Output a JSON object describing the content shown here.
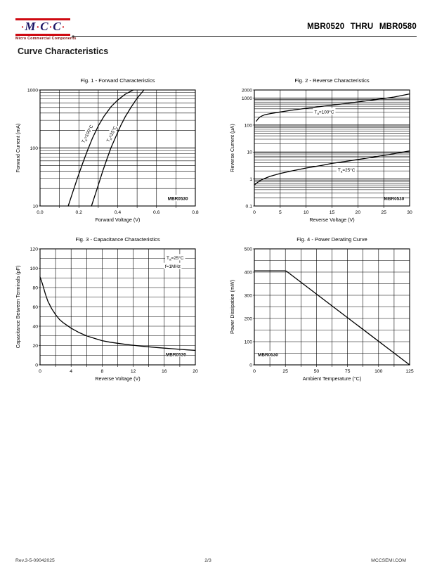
{
  "header": {
    "logo": {
      "dot": "·",
      "letters": [
        "M",
        "C",
        "C"
      ],
      "tagline": "Micro Commercial Components",
      "reg": "®",
      "bar_color": "#cf0a12",
      "letter_color": "#1b1464"
    },
    "part_range": "MBR0520 THRU MBR0580"
  },
  "section_title": "Curve Characteristics",
  "footer": {
    "revision": "Rev.3-5-09042025",
    "page_number": "2/3",
    "website": "MCCSEMI.COM"
  },
  "chart_data": [
    {
      "type": "line",
      "title": "Fig. 1 - Forward Characteristics",
      "xlabel": "Forward Voltage (V)",
      "ylabel": "Forward Current (mA)",
      "grid": true,
      "x": {
        "scale": "linear",
        "min": 0,
        "max": 0.8,
        "grid_step": 0.1,
        "ticks": [
          {
            "v": 0,
            "t": "0.0"
          },
          {
            "v": 0.2,
            "t": "0.2"
          },
          {
            "v": 0.4,
            "t": "0.4"
          },
          {
            "v": 0.6,
            "t": "0.6"
          },
          {
            "v": 0.8,
            "t": "0.8"
          }
        ]
      },
      "y": {
        "scale": "log",
        "min": 10,
        "max": 1000,
        "ticks": [
          {
            "v": 10,
            "t": "10"
          },
          {
            "v": 100,
            "t": "100"
          },
          {
            "v": 1000,
            "t": "1000"
          }
        ]
      },
      "series": [
        {
          "name": "Ta=100C",
          "points": [
            [
              0.145,
              10
            ],
            [
              0.17,
              18
            ],
            [
              0.195,
              32
            ],
            [
              0.22,
              55
            ],
            [
              0.245,
              92
            ],
            [
              0.27,
              148
            ],
            [
              0.3,
              240
            ],
            [
              0.33,
              355
            ],
            [
              0.365,
              510
            ],
            [
              0.4,
              670
            ],
            [
              0.44,
              850
            ],
            [
              0.48,
              1000
            ]
          ]
        },
        {
          "name": "Ta=25C",
          "points": [
            [
              0.265,
              10
            ],
            [
              0.285,
              16
            ],
            [
              0.305,
              26
            ],
            [
              0.325,
              42
            ],
            [
              0.345,
              65
            ],
            [
              0.365,
              100
            ],
            [
              0.39,
              155
            ],
            [
              0.415,
              240
            ],
            [
              0.44,
              350
            ],
            [
              0.47,
              510
            ],
            [
              0.5,
              720
            ],
            [
              0.535,
              1000
            ]
          ]
        }
      ],
      "annotations": [
        {
          "x": 0.243,
          "y": 175,
          "rotate": -63,
          "parts": [
            {
              "t": "T"
            },
            {
              "t": "a",
              "sub": true
            },
            {
              "t": "=100°C"
            }
          ]
        },
        {
          "x": 0.368,
          "y": 175,
          "rotate": -63,
          "parts": [
            {
              "t": "T"
            },
            {
              "t": "a",
              "sub": true
            },
            {
              "t": "=25°C"
            }
          ]
        },
        {
          "x": 0.71,
          "y": 13.5,
          "rotate": 0,
          "bold": true,
          "parts": [
            {
              "t": "MBR0530"
            }
          ]
        }
      ]
    },
    {
      "type": "line",
      "title": "Fig. 2 - Reverse Characteristics",
      "xlabel": "Reverse Voltage (V)",
      "ylabel": "Reverse Current (µA)",
      "grid": true,
      "x": {
        "scale": "linear",
        "min": 0,
        "max": 30,
        "grid_step": 5,
        "ticks": [
          {
            "v": 0,
            "t": "0"
          },
          {
            "v": 5,
            "t": "5"
          },
          {
            "v": 10,
            "t": "10"
          },
          {
            "v": 15,
            "t": "15"
          },
          {
            "v": 20,
            "t": "20"
          },
          {
            "v": 25,
            "t": "25"
          },
          {
            "v": 30,
            "t": "30"
          }
        ]
      },
      "y": {
        "scale": "log",
        "min": 0.1,
        "max": 2000,
        "ticks": [
          {
            "v": 0.1,
            "t": "0.1"
          },
          {
            "v": 1,
            "t": "1"
          },
          {
            "v": 10,
            "t": "10"
          },
          {
            "v": 100,
            "t": "100"
          },
          {
            "v": 1000,
            "t": "1000"
          },
          {
            "v": 2000,
            "t": "2000"
          }
        ]
      },
      "series": [
        {
          "name": "Ta=100C",
          "points": [
            [
              0.4,
              140
            ],
            [
              0.7,
              170
            ],
            [
              1,
              195
            ],
            [
              1.5,
              220
            ],
            [
              2,
              240
            ],
            [
              3,
              265
            ],
            [
              5,
              305
            ],
            [
              7,
              350
            ],
            [
              10,
              420
            ],
            [
              13,
              490
            ],
            [
              15,
              550
            ],
            [
              18,
              640
            ],
            [
              20,
              720
            ],
            [
              23,
              860
            ],
            [
              25,
              970
            ],
            [
              27,
              1100
            ],
            [
              30,
              1430
            ]
          ]
        },
        {
          "name": "Ta=25C",
          "points": [
            [
              0,
              0.6
            ],
            [
              0.5,
              0.72
            ],
            [
              1,
              0.84
            ],
            [
              1.5,
              0.95
            ],
            [
              2,
              1.05
            ],
            [
              3,
              1.25
            ],
            [
              5,
              1.6
            ],
            [
              7,
              1.95
            ],
            [
              10,
              2.55
            ],
            [
              13,
              3.2
            ],
            [
              15,
              3.8
            ],
            [
              18,
              4.6
            ],
            [
              20,
              5.3
            ],
            [
              23,
              6.5
            ],
            [
              25,
              7.5
            ],
            [
              27,
              8.7
            ],
            [
              30,
              11
            ]
          ]
        }
      ],
      "annotations": [
        {
          "x": 13.5,
          "y": 310,
          "rotate": 0,
          "parts": [
            {
              "t": "T"
            },
            {
              "t": "a",
              "sub": true
            },
            {
              "t": "=100°C"
            }
          ]
        },
        {
          "x": 17.8,
          "y": 2.2,
          "rotate": 0,
          "parts": [
            {
              "t": "T"
            },
            {
              "t": "a",
              "sub": true
            },
            {
              "t": "=25°C"
            }
          ]
        },
        {
          "x": 27,
          "y": 0.19,
          "rotate": 0,
          "bold": true,
          "parts": [
            {
              "t": "MBR0530"
            }
          ]
        }
      ]
    },
    {
      "type": "line",
      "title": "Fig. 3 - Capacitance Characteristics",
      "xlabel": "Reverse Voltage (V)",
      "ylabel": "Capacitance Between Terminals (pF)",
      "grid": true,
      "x": {
        "scale": "linear",
        "min": 0,
        "max": 20,
        "grid_step": 2,
        "ticks": [
          {
            "v": 0,
            "t": "0"
          },
          {
            "v": 4,
            "t": "4"
          },
          {
            "v": 8,
            "t": "8"
          },
          {
            "v": 12,
            "t": "12"
          },
          {
            "v": 16,
            "t": "16"
          },
          {
            "v": 20,
            "t": "20"
          }
        ]
      },
      "y": {
        "scale": "linear",
        "min": 0,
        "max": 120,
        "grid_step": 10,
        "ticks": [
          {
            "v": 0,
            "t": "0"
          },
          {
            "v": 20,
            "t": "20"
          },
          {
            "v": 40,
            "t": "40"
          },
          {
            "v": 60,
            "t": "60"
          },
          {
            "v": 80,
            "t": "80"
          },
          {
            "v": 100,
            "t": "100"
          },
          {
            "v": 120,
            "t": "120"
          }
        ]
      },
      "series": [
        {
          "name": "capacitance",
          "points": [
            [
              0,
              91
            ],
            [
              0.3,
              84
            ],
            [
              0.7,
              73
            ],
            [
              1,
              66
            ],
            [
              1.5,
              58
            ],
            [
              2,
              52
            ],
            [
              2.5,
              47
            ],
            [
              3,
              43.5
            ],
            [
              4,
              38
            ],
            [
              5,
              33.5
            ],
            [
              6,
              30
            ],
            [
              7,
              27.5
            ],
            [
              8,
              25
            ],
            [
              9,
              23.5
            ],
            [
              10,
              22.3
            ],
            [
              11,
              21.2
            ],
            [
              12,
              20.3
            ],
            [
              13,
              19.4
            ],
            [
              14,
              18.7
            ],
            [
              15,
              18
            ],
            [
              16,
              17.3
            ],
            [
              17,
              16.7
            ],
            [
              18,
              16.1
            ],
            [
              19,
              15.5
            ],
            [
              20,
              15
            ]
          ]
        }
      ],
      "annotations": [
        {
          "x": 17.4,
          "y": 111,
          "rotate": 0,
          "parts": [
            {
              "t": "T"
            },
            {
              "t": "a",
              "sub": true
            },
            {
              "t": "=25°C"
            }
          ]
        },
        {
          "x": 17.1,
          "y": 102,
          "rotate": 0,
          "parts": [
            {
              "t": "f=1MHz"
            }
          ]
        },
        {
          "x": 17.5,
          "y": 11,
          "rotate": 0,
          "bold": true,
          "parts": [
            {
              "t": "MBR0530"
            }
          ]
        }
      ]
    },
    {
      "type": "line",
      "title": "Fig. 4 - Power Derating Curve",
      "xlabel": "Ambient Temperature (°C)",
      "ylabel": "Power Dissipation (mW)",
      "grid": true,
      "x": {
        "scale": "linear",
        "min": 0,
        "max": 125,
        "grid_step": 12.5,
        "ticks": [
          {
            "v": 0,
            "t": "0"
          },
          {
            "v": 25,
            "t": "25"
          },
          {
            "v": 50,
            "t": "50"
          },
          {
            "v": 75,
            "t": "75"
          },
          {
            "v": 100,
            "t": "100"
          },
          {
            "v": 125,
            "t": "125"
          }
        ]
      },
      "y": {
        "scale": "linear",
        "min": 0,
        "max": 500,
        "grid_step": 50,
        "ticks": [
          {
            "v": 0,
            "t": "0"
          },
          {
            "v": 100,
            "t": "100"
          },
          {
            "v": 200,
            "t": "200"
          },
          {
            "v": 300,
            "t": "300"
          },
          {
            "v": 400,
            "t": "400"
          },
          {
            "v": 500,
            "t": "500"
          }
        ]
      },
      "series": [
        {
          "name": "power-dissipation",
          "points": [
            [
              0,
              405
            ],
            [
              25,
              405
            ],
            [
              26,
              403
            ],
            [
              125,
              0
            ]
          ]
        }
      ],
      "annotations": [
        {
          "x": 11,
          "y": 45,
          "rotate": 0,
          "bold": true,
          "parts": [
            {
              "t": "MBR0530"
            }
          ]
        }
      ]
    }
  ]
}
